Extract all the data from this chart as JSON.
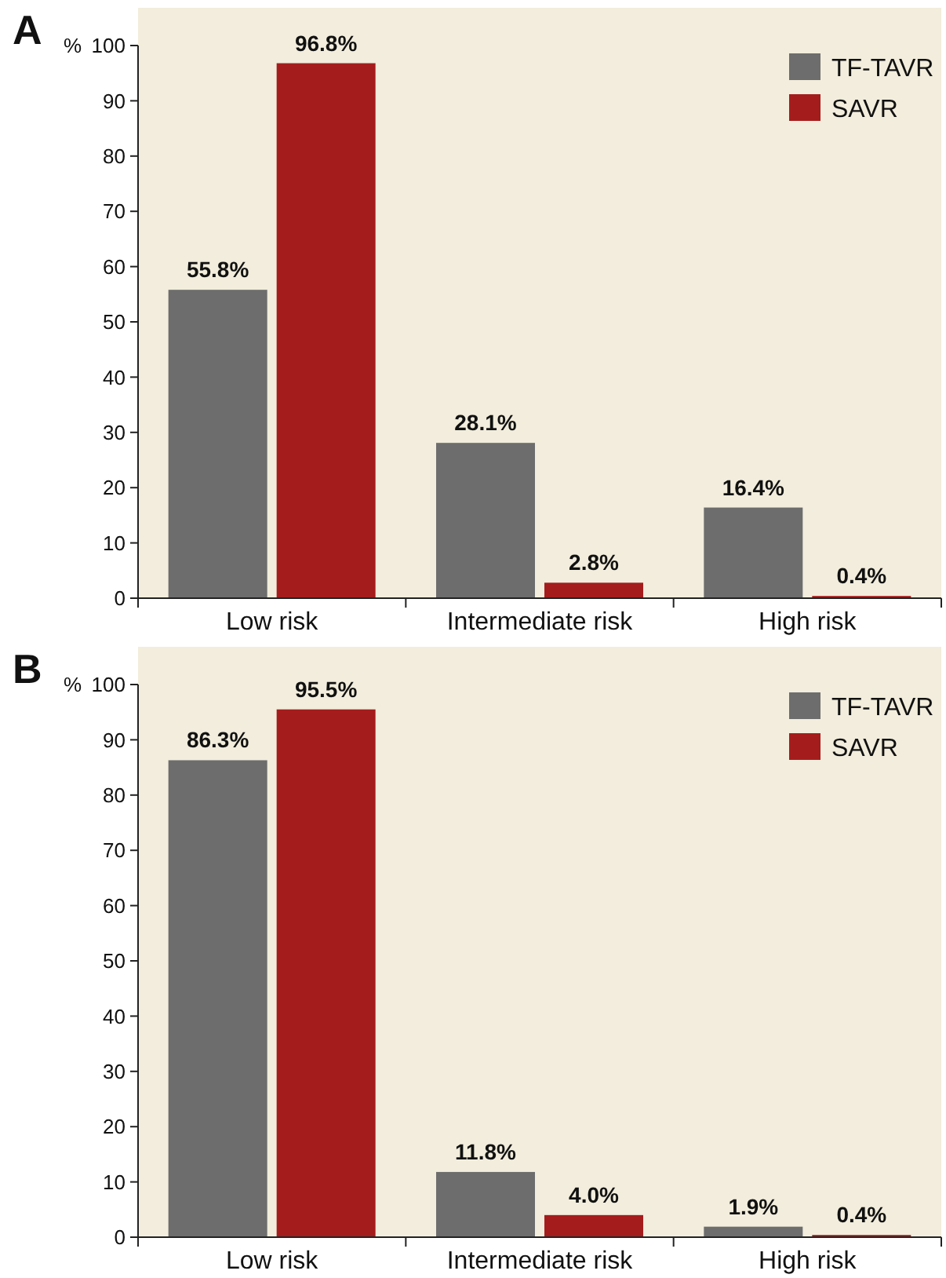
{
  "chart_data": [
    {
      "type": "bar",
      "title": "A",
      "ylabel": "%",
      "categories": [
        "Low risk",
        "Intermediate risk",
        "High risk"
      ],
      "series": [
        {
          "name": "TF-TAVR",
          "color": "#6d6d6d",
          "values": [
            55.8,
            28.1,
            16.4
          ],
          "value_labels": [
            "55.8%",
            "28.1%",
            "16.4%"
          ]
        },
        {
          "name": "SAVR",
          "color": "#a51c1c",
          "values": [
            96.8,
            2.8,
            0.4
          ],
          "value_labels": [
            "96.8%",
            "2.8%",
            "0.4%"
          ]
        }
      ],
      "ylim": [
        0,
        100
      ],
      "yticks": [
        0,
        10,
        20,
        30,
        40,
        50,
        60,
        70,
        80,
        90,
        100
      ],
      "legend": "top right",
      "grid": false
    },
    {
      "type": "bar",
      "title": "B",
      "ylabel": "%",
      "categories": [
        "Low risk",
        "Intermediate risk",
        "High risk"
      ],
      "series": [
        {
          "name": "TF-TAVR",
          "color": "#6d6d6d",
          "values": [
            86.3,
            11.8,
            1.9
          ],
          "value_labels": [
            "86.3%",
            "11.8%",
            "1.9%"
          ]
        },
        {
          "name": "SAVR",
          "color": "#a51c1c",
          "values": [
            95.5,
            4.0,
            0.4
          ],
          "value_labels": [
            "95.5%",
            "4.0%",
            "0.4%"
          ]
        }
      ],
      "ylim": [
        0,
        100
      ],
      "yticks": [
        0,
        10,
        20,
        30,
        40,
        50,
        60,
        70,
        80,
        90,
        100
      ],
      "legend": "top right",
      "grid": false
    }
  ]
}
